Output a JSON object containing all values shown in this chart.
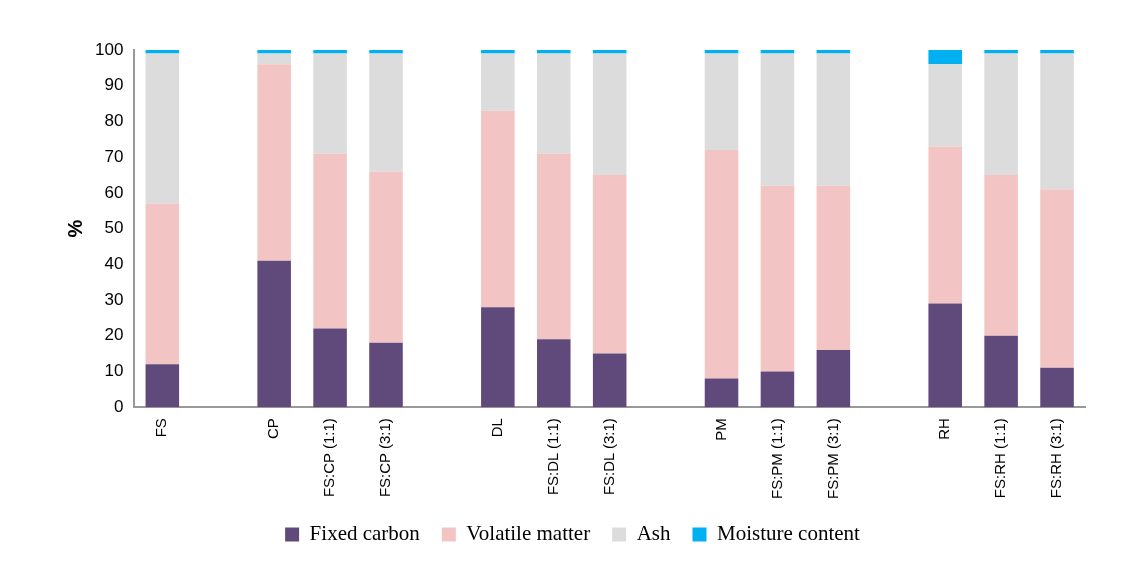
{
  "chart_data": {
    "type": "bar",
    "stacked": true,
    "ylabel": "%",
    "legend": "bottom",
    "grid": false,
    "categories": [
      "FS",
      null,
      "CP",
      "FS:CP (1:1)",
      "FS:CP (3:1)",
      null,
      "DL",
      "FS:DL (1:1)",
      "FS:DL (3:1)",
      null,
      "PM",
      "FS:PM (1:1)",
      "FS:PM (3:1)",
      null,
      "RH",
      "FS:RH (1:1)",
      "FS:RH (3:1)"
    ],
    "ylim": [
      0,
      100
    ],
    "yticks": [
      0,
      10,
      20,
      30,
      40,
      50,
      60,
      70,
      80,
      90,
      100
    ],
    "series": [
      {
        "name": "Fixed carbon",
        "color": "#604a7b",
        "values": [
          12,
          null,
          41,
          22,
          18,
          null,
          28,
          19,
          15,
          null,
          8,
          10,
          16,
          null,
          29,
          20,
          11
        ]
      },
      {
        "name": "Volatile matter",
        "color": "#f2c4c4",
        "values": [
          45,
          null,
          55,
          49,
          48,
          null,
          55,
          52,
          50,
          null,
          64,
          52,
          46,
          null,
          44,
          45,
          50
        ]
      },
      {
        "name": "Ash",
        "color": "#dcdcdc",
        "values": [
          42,
          null,
          3,
          28,
          33,
          null,
          16,
          28,
          34,
          null,
          27,
          37,
          37,
          null,
          23,
          34,
          38
        ]
      },
      {
        "name": "Moisture content",
        "color": "#00b0f0",
        "values": [
          1,
          null,
          1,
          1,
          1,
          null,
          1,
          1,
          1,
          null,
          1,
          1,
          1,
          null,
          4,
          1,
          1
        ]
      }
    ]
  }
}
